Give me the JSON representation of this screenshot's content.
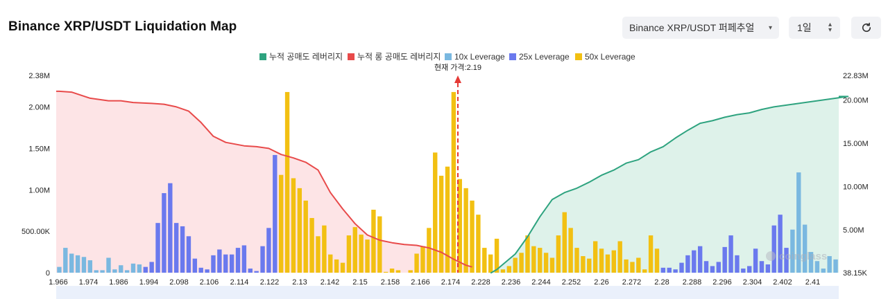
{
  "header": {
    "title": "Binance XRP/USDT Liquidation Map",
    "exchange_select": "Binance XRP/USDT 퍼페추얼",
    "period_select": "1일"
  },
  "colors": {
    "short_cumulative": "#2ea37f",
    "long_cumulative": "#e84a4a",
    "lev10": "#7ab8e0",
    "lev25": "#6a79ee",
    "lev50": "#f2c012",
    "current_price_line": "#e53935"
  },
  "chart_data": {
    "type": "bar",
    "title": "",
    "legend": [
      {
        "name": "누적 공매도 레버리지",
        "color": "#2ea37f"
      },
      {
        "name": "누적 롱 공매도 레버리지",
        "color": "#e84a4a"
      },
      {
        "name": "10x Leverage",
        "color": "#7ab8e0"
      },
      {
        "name": "25x Leverage",
        "color": "#6a79ee"
      },
      {
        "name": "50x Leverage",
        "color": "#f2c012"
      }
    ],
    "current_price_label": "현재 가격:2.19",
    "current_price": 2.19,
    "watermark": "coinglass",
    "y_left": {
      "ticks": [
        "0",
        "500.00K",
        "1.00M",
        "1.50M",
        "2.00M",
        "2.38M"
      ],
      "ylim": [
        0,
        2380000
      ]
    },
    "y_right": {
      "ticks": [
        "38.15K",
        "5.00M",
        "10.00M",
        "15.00M",
        "20.00M",
        "22.83M"
      ],
      "ylim": [
        38150,
        22830000
      ]
    },
    "x_ticks": [
      "1.966",
      "1.974",
      "1.986",
      "1.994",
      "2.098",
      "2.106",
      "2.114",
      "2.122",
      "2.13",
      "2.142",
      "2.15",
      "2.158",
      "2.166",
      "2.174",
      "2.228",
      "2.236",
      "2.244",
      "2.252",
      "2.26",
      "2.272",
      "2.28",
      "2.288",
      "2.296",
      "2.304",
      "2.402",
      "2.41"
    ],
    "bar_leverage": [
      "10x",
      "10x",
      "10x",
      "10x",
      "10x",
      "10x",
      "10x",
      "10x",
      "10x",
      "10x",
      "10x",
      "10x",
      "10x",
      "10x",
      "25x",
      "25x",
      "25x",
      "25x",
      "25x",
      "25x",
      "25x",
      "25x",
      "25x",
      "25x",
      "25x",
      "25x",
      "25x",
      "25x",
      "25x",
      "25x",
      "25x",
      "25x",
      "25x",
      "25x",
      "25x",
      "25x",
      "50x",
      "50x",
      "50x",
      "50x",
      "50x",
      "50x",
      "50x",
      "50x",
      "50x",
      "50x",
      "50x",
      "50x",
      "50x",
      "50x",
      "50x",
      "50x",
      "50x",
      "50x",
      "50x",
      "50x",
      "50x",
      "50x",
      "50x",
      "50x",
      "50x",
      "50x",
      "50x",
      "50x",
      "50x",
      "50x",
      "50x",
      "50x",
      "50x",
      "50x",
      "50x",
      "50x",
      "50x",
      "50x",
      "50x",
      "50x",
      "50x",
      "50x",
      "50x",
      "50x",
      "50x",
      "50x",
      "50x",
      "50x",
      "50x",
      "50x",
      "50x",
      "50x",
      "50x",
      "50x",
      "50x",
      "50x",
      "50x",
      "50x",
      "50x",
      "50x",
      "50x",
      "50x",
      "25x",
      "25x",
      "25x",
      "25x",
      "25x",
      "25x",
      "25x",
      "25x",
      "25x",
      "25x",
      "25x",
      "25x",
      "25x",
      "25x",
      "25x",
      "25x",
      "25x",
      "25x",
      "25x",
      "25x",
      "25x",
      "10x",
      "10x",
      "10x",
      "10x",
      "10x",
      "10x",
      "10x",
      "10x",
      "10x"
    ],
    "bar_values": [
      70000,
      300000,
      230000,
      210000,
      190000,
      150000,
      30000,
      30000,
      180000,
      40000,
      90000,
      30000,
      110000,
      100000,
      70000,
      130000,
      600000,
      960000,
      1080000,
      600000,
      560000,
      440000,
      170000,
      60000,
      40000,
      210000,
      280000,
      220000,
      220000,
      300000,
      330000,
      50000,
      20000,
      320000,
      540000,
      1420000,
      1180000,
      2180000,
      1140000,
      1020000,
      870000,
      660000,
      440000,
      570000,
      220000,
      160000,
      120000,
      450000,
      550000,
      460000,
      400000,
      760000,
      680000,
      10000,
      50000,
      30000,
      0,
      30000,
      230000,
      320000,
      540000,
      1450000,
      1170000,
      1280000,
      2180000,
      1130000,
      1020000,
      870000,
      700000,
      300000,
      220000,
      410000,
      40000,
      80000,
      180000,
      240000,
      450000,
      320000,
      300000,
      240000,
      180000,
      450000,
      730000,
      540000,
      300000,
      200000,
      170000,
      380000,
      290000,
      220000,
      270000,
      380000,
      160000,
      130000,
      180000,
      40000,
      450000,
      290000,
      60000,
      60000,
      40000,
      120000,
      210000,
      270000,
      320000,
      140000,
      80000,
      130000,
      310000,
      450000,
      210000,
      50000,
      80000,
      290000,
      140000,
      100000,
      570000,
      700000,
      300000,
      520000,
      1210000,
      580000,
      250000,
      140000,
      50000,
      200000,
      160000
    ],
    "long_cumulative_series": [
      [
        0,
        21000000
      ],
      [
        2,
        20900000
      ],
      [
        5,
        20200000
      ],
      [
        8,
        19900000
      ],
      [
        10,
        19900000
      ],
      [
        12,
        19700000
      ],
      [
        15,
        19600000
      ],
      [
        17,
        19500000
      ],
      [
        19,
        19200000
      ],
      [
        21,
        18700000
      ],
      [
        23,
        17400000
      ],
      [
        25,
        15800000
      ],
      [
        27,
        15100000
      ],
      [
        30,
        14700000
      ],
      [
        32,
        14600000
      ],
      [
        34,
        14400000
      ],
      [
        36,
        13700000
      ],
      [
        38,
        13300000
      ],
      [
        40,
        12800000
      ],
      [
        42,
        11900000
      ],
      [
        44,
        9300000
      ],
      [
        46,
        7400000
      ],
      [
        48,
        5700000
      ],
      [
        50,
        4400000
      ],
      [
        52,
        3800000
      ],
      [
        54,
        3500000
      ],
      [
        56,
        3300000
      ],
      [
        58,
        3200000
      ],
      [
        60,
        2900000
      ],
      [
        62,
        2400000
      ],
      [
        64,
        1600000
      ],
      [
        66,
        900000
      ],
      [
        67,
        700000
      ]
    ],
    "short_cumulative_series": [
      [
        70,
        0
      ],
      [
        71,
        400000
      ],
      [
        72,
        1000000
      ],
      [
        74,
        2200000
      ],
      [
        76,
        4200000
      ],
      [
        78,
        6500000
      ],
      [
        80,
        8500000
      ],
      [
        82,
        9300000
      ],
      [
        84,
        9800000
      ],
      [
        86,
        10500000
      ],
      [
        88,
        11300000
      ],
      [
        90,
        11900000
      ],
      [
        92,
        12700000
      ],
      [
        94,
        13100000
      ],
      [
        96,
        14000000
      ],
      [
        98,
        14600000
      ],
      [
        100,
        15600000
      ],
      [
        102,
        16500000
      ],
      [
        104,
        17300000
      ],
      [
        106,
        17600000
      ],
      [
        108,
        18000000
      ],
      [
        110,
        18300000
      ],
      [
        112,
        18500000
      ],
      [
        114,
        18900000
      ],
      [
        116,
        19200000
      ],
      [
        118,
        19400000
      ],
      [
        120,
        19600000
      ],
      [
        122,
        19800000
      ],
      [
        124,
        20000000
      ],
      [
        126,
        20200000
      ],
      [
        128,
        20400000
      ]
    ]
  }
}
